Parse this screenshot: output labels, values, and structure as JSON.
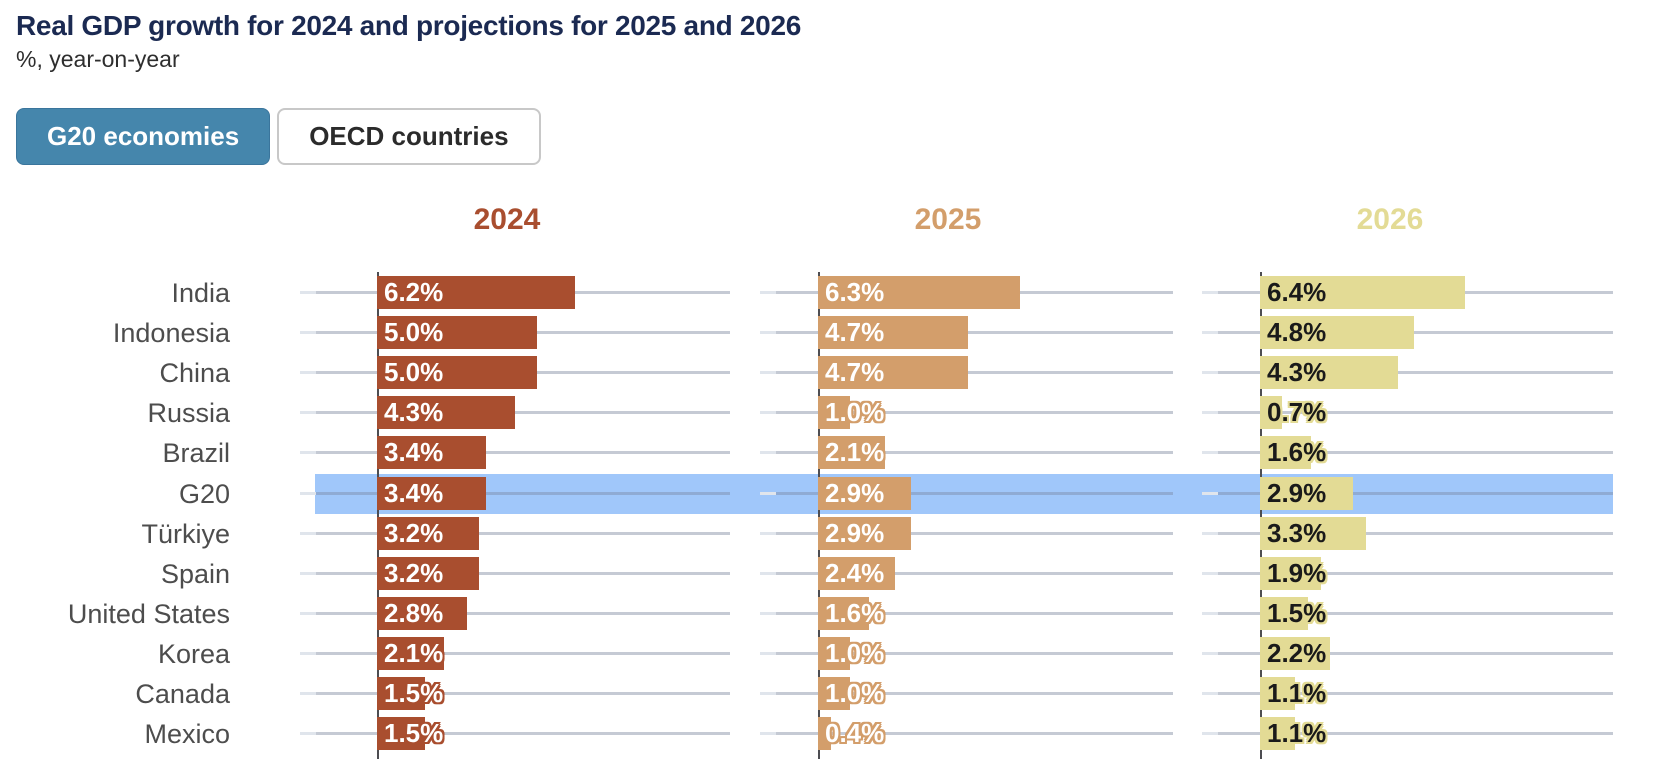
{
  "title": "Real GDP growth for 2024 and projections for 2025 and 2026",
  "subtitle": "%, year-on-year",
  "toggle": {
    "g20_label": "G20 economies",
    "oecd_label": "OECD countries",
    "active": "G20 economies"
  },
  "chart_data": {
    "type": "bar",
    "orientation": "horizontal",
    "unit": "%",
    "value_decimals": 1,
    "categories": [
      "India",
      "Indonesia",
      "China",
      "Russia",
      "Brazil",
      "G20",
      "Türkiye",
      "Spain",
      "United States",
      "Korea",
      "Canada",
      "Mexico"
    ],
    "highlighted_category": "G20",
    "highlight_color": "#a0c7fa",
    "grid": true,
    "axis_range_per_panel": [
      0,
      11
    ],
    "legend_position": "column-headers",
    "series": [
      {
        "name": "2024",
        "color": "#a94e2f",
        "label_text_color": "#ffffff",
        "values": [
          6.2,
          5.0,
          5.0,
          4.3,
          3.4,
          3.4,
          3.2,
          3.2,
          2.8,
          2.1,
          1.5,
          1.5
        ]
      },
      {
        "name": "2025",
        "color": "#d39e6b",
        "label_text_color": "#ffffff",
        "values": [
          6.3,
          4.7,
          4.7,
          1.0,
          2.1,
          2.9,
          2.9,
          2.4,
          1.6,
          1.0,
          1.0,
          0.4
        ]
      },
      {
        "name": "2026",
        "color": "#e3db95",
        "label_text_color": "#1a1a1a",
        "values": [
          6.4,
          4.8,
          4.3,
          0.7,
          1.6,
          2.9,
          3.3,
          1.9,
          1.5,
          2.2,
          1.1,
          1.1
        ]
      }
    ],
    "colors": {
      "grid_line": "#c5cad4",
      "grid_line_cap": "#e0e5ec",
      "grid_line_in_highlight": "#8fabd4",
      "axis_line": "#4d4d52",
      "country_label": "#4d4d4d",
      "title": "#1b2a52"
    }
  }
}
